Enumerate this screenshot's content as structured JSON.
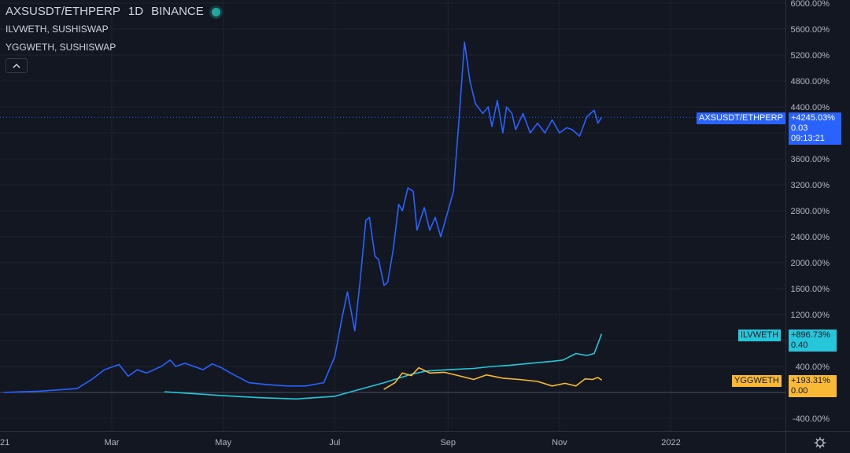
{
  "legend": {
    "main_symbol": "AXSUSDT/ETHPERP",
    "interval": "1D",
    "exchange": "BINANCE",
    "series2": "ILVWETH, SUSHISWAP",
    "series3": "YGGWETH, SUSHISWAP",
    "collapse_icon": "chevron-up-icon"
  },
  "badges": {
    "axs_name": "AXSUSDT/ETHPERP",
    "axs_change": "+4245.03%",
    "axs_price": "0.03",
    "axs_countdown": "09:13:21",
    "ilv_name": "ILVWETH",
    "ilv_change": "+896.73%",
    "ilv_price": "0.40",
    "ygg_name": "YGGWETH",
    "ygg_change": "+193.31%",
    "ygg_price": "0.00"
  },
  "colors": {
    "background": "#131722",
    "axs": "#2962ff",
    "ilv": "#26c6da",
    "ygg": "#f9b934",
    "grid": "#2a2e39",
    "text": "#b2b5be"
  },
  "settings_icon": "gear-icon",
  "chart_data": {
    "type": "line",
    "x_axis_labels": [
      "21",
      "Mar",
      "May",
      "Jul",
      "Sep",
      "Nov",
      "2022"
    ],
    "y_axis_ticks": [
      "6000.00%",
      "5600.00%",
      "5200.00%",
      "4800.00%",
      "4400.00%",
      "4000.00%",
      "3600.00%",
      "3200.00%",
      "2800.00%",
      "2400.00%",
      "2000.00%",
      "1600.00%",
      "1200.00%",
      "800.00%",
      "400.00%",
      "0.00%",
      "-400.00%"
    ],
    "y_unit": "%",
    "ylim": [
      -400,
      6000
    ],
    "grid": true,
    "series": [
      {
        "name": "AXSUSDT/ETHPERP",
        "color": "#2962ff",
        "x": [
          "2021-01-01",
          "2021-01-10",
          "2021-01-20",
          "2021-01-31",
          "2021-02-10",
          "2021-02-18",
          "2021-02-25",
          "2021-03-05",
          "2021-03-10",
          "2021-03-15",
          "2021-03-20",
          "2021-03-28",
          "2021-04-02",
          "2021-04-05",
          "2021-04-10",
          "2021-04-20",
          "2021-04-25",
          "2021-04-30",
          "2021-05-05",
          "2021-05-15",
          "2021-05-25",
          "2021-06-05",
          "2021-06-15",
          "2021-06-25",
          "2021-07-01",
          "2021-07-05",
          "2021-07-08",
          "2021-07-12",
          "2021-07-15",
          "2021-07-18",
          "2021-07-20",
          "2021-07-23",
          "2021-07-25",
          "2021-07-28",
          "2021-07-30",
          "2021-08-02",
          "2021-08-05",
          "2021-08-07",
          "2021-08-10",
          "2021-08-13",
          "2021-08-15",
          "2021-08-19",
          "2021-08-22",
          "2021-08-25",
          "2021-08-28",
          "2021-09-01",
          "2021-09-04",
          "2021-09-07",
          "2021-09-10",
          "2021-09-13",
          "2021-09-16",
          "2021-09-20",
          "2021-09-23",
          "2021-09-25",
          "2021-09-28",
          "2021-10-01",
          "2021-10-03",
          "2021-10-06",
          "2021-10-08",
          "2021-10-12",
          "2021-10-16",
          "2021-10-20",
          "2021-10-24",
          "2021-10-28",
          "2021-11-01",
          "2021-11-05",
          "2021-11-08",
          "2021-11-12",
          "2021-11-16",
          "2021-11-20",
          "2021-11-22",
          "2021-11-24"
        ],
        "y": [
          0,
          10,
          20,
          40,
          60,
          200,
          350,
          430,
          250,
          350,
          300,
          400,
          500,
          400,
          450,
          350,
          440,
          380,
          300,
          150,
          120,
          100,
          100,
          150,
          550,
          1150,
          1550,
          950,
          1750,
          2650,
          2700,
          2100,
          2050,
          1650,
          1700,
          2200,
          2900,
          2800,
          3150,
          3100,
          2500,
          2850,
          2500,
          2700,
          2400,
          2800,
          3100,
          4200,
          5400,
          4800,
          4450,
          4300,
          4400,
          4100,
          4500,
          4000,
          4400,
          4300,
          4050,
          4300,
          4000,
          4150,
          4000,
          4200,
          4000,
          4080,
          4050,
          3950,
          4250,
          4350,
          4150,
          4240
        ]
      },
      {
        "name": "ILVWETH",
        "color": "#26c6da",
        "x": [
          "2021-03-30",
          "2021-04-15",
          "2021-05-01",
          "2021-05-20",
          "2021-06-10",
          "2021-07-01",
          "2021-07-15",
          "2021-07-28",
          "2021-08-05",
          "2021-08-12",
          "2021-08-20",
          "2021-09-01",
          "2021-09-15",
          "2021-09-25",
          "2021-10-05",
          "2021-10-20",
          "2021-10-28",
          "2021-11-03",
          "2021-11-10",
          "2021-11-16",
          "2021-11-20",
          "2021-11-24"
        ],
        "y": [
          10,
          -20,
          -50,
          -80,
          -100,
          -60,
          50,
          150,
          220,
          280,
          330,
          350,
          370,
          400,
          420,
          460,
          480,
          500,
          600,
          570,
          600,
          900
        ]
      },
      {
        "name": "YGGWETH",
        "color": "#f9b934",
        "x": [
          "2021-07-28",
          "2021-08-03",
          "2021-08-07",
          "2021-08-12",
          "2021-08-16",
          "2021-08-22",
          "2021-08-30",
          "2021-09-08",
          "2021-09-15",
          "2021-09-22",
          "2021-10-01",
          "2021-10-10",
          "2021-10-20",
          "2021-10-28",
          "2021-11-04",
          "2021-11-10",
          "2021-11-15",
          "2021-11-19",
          "2021-11-22",
          "2021-11-24"
        ],
        "y": [
          50,
          150,
          300,
          260,
          380,
          300,
          310,
          250,
          200,
          270,
          220,
          200,
          170,
          100,
          140,
          100,
          210,
          200,
          230,
          193
        ]
      }
    ]
  }
}
